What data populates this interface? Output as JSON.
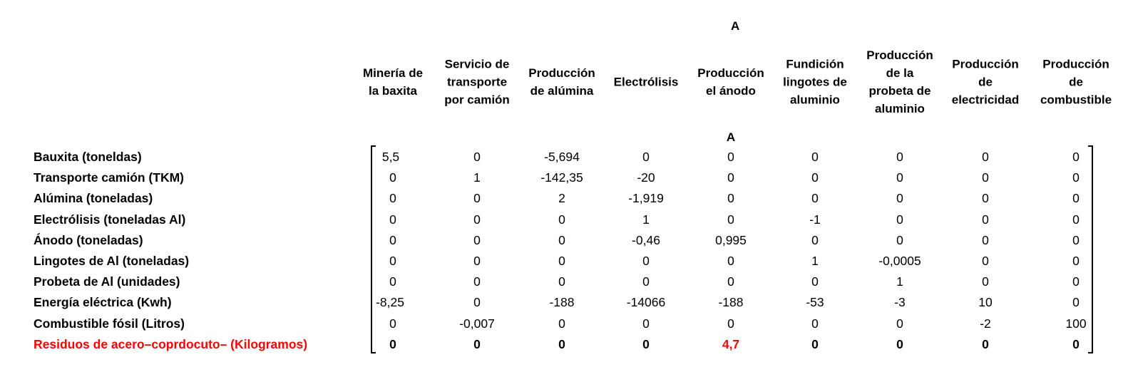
{
  "matrix": {
    "title": "A",
    "subtitle": "A",
    "columns": [
      "Minería de\nla baxita",
      "Servicio de\ntransporte\npor camión",
      "Producción\nde alúmina",
      "Electrólisis",
      "Producción\nel ánodo",
      "Fundición\nlingotes de\naluminio",
      "Producción\nde la\nprobeta de\naluminio",
      "Producción\nde\nelectricidad",
      "Producción\nde\ncombustible"
    ],
    "rows": [
      {
        "label": "Bauxita (toneldas)",
        "values": [
          "5,5",
          "0",
          "-5,694",
          "0",
          "0",
          "0",
          "0",
          "0",
          "0"
        ]
      },
      {
        "label": "Transporte camión (TKM)",
        "values": [
          "0",
          "1",
          "-142,35",
          "-20",
          "0",
          "0",
          "0",
          "0",
          "0"
        ]
      },
      {
        "label": "Alúmina (toneladas)",
        "values": [
          "0",
          "0",
          "2",
          "-1,919",
          "0",
          "0",
          "0",
          "0",
          "0"
        ]
      },
      {
        "label": "Electrólisis (toneladas Al)",
        "values": [
          "0",
          "0",
          "0",
          "1",
          "0",
          "-1",
          "0",
          "0",
          "0"
        ]
      },
      {
        "label": "Ánodo (toneladas)",
        "values": [
          "0",
          "0",
          "0",
          "-0,46",
          "0,995",
          "0",
          "0",
          "0",
          "0"
        ]
      },
      {
        "label": "Lingotes de Al (toneladas)",
        "values": [
          "0",
          "0",
          "0",
          "0",
          "0",
          "1",
          "-0,0005",
          "0",
          "0"
        ]
      },
      {
        "label": "Probeta de Al (unidades)",
        "values": [
          "0",
          "0",
          "0",
          "0",
          "0",
          "0",
          "1",
          "0",
          "0"
        ]
      },
      {
        "label": "Energía eléctrica (Kwh)",
        "values": [
          "-8,25",
          "0",
          "-188",
          "-14066",
          "-188",
          "-53",
          "-3",
          "10",
          "0"
        ]
      },
      {
        "label": "Combustible fósil (Litros)",
        "values": [
          "0",
          "-0,007",
          "0",
          "0",
          "0",
          "0",
          "0",
          "-2",
          "100"
        ]
      },
      {
        "label": "Residuos de acero–coprdocuto– (Kilogramos)",
        "values": [
          "0",
          "0",
          "0",
          "0",
          "4,7",
          "0",
          "0",
          "0",
          "0"
        ],
        "emphasis": true
      }
    ],
    "colors": {
      "highlight": "#ff0000",
      "text": "#000000"
    }
  }
}
